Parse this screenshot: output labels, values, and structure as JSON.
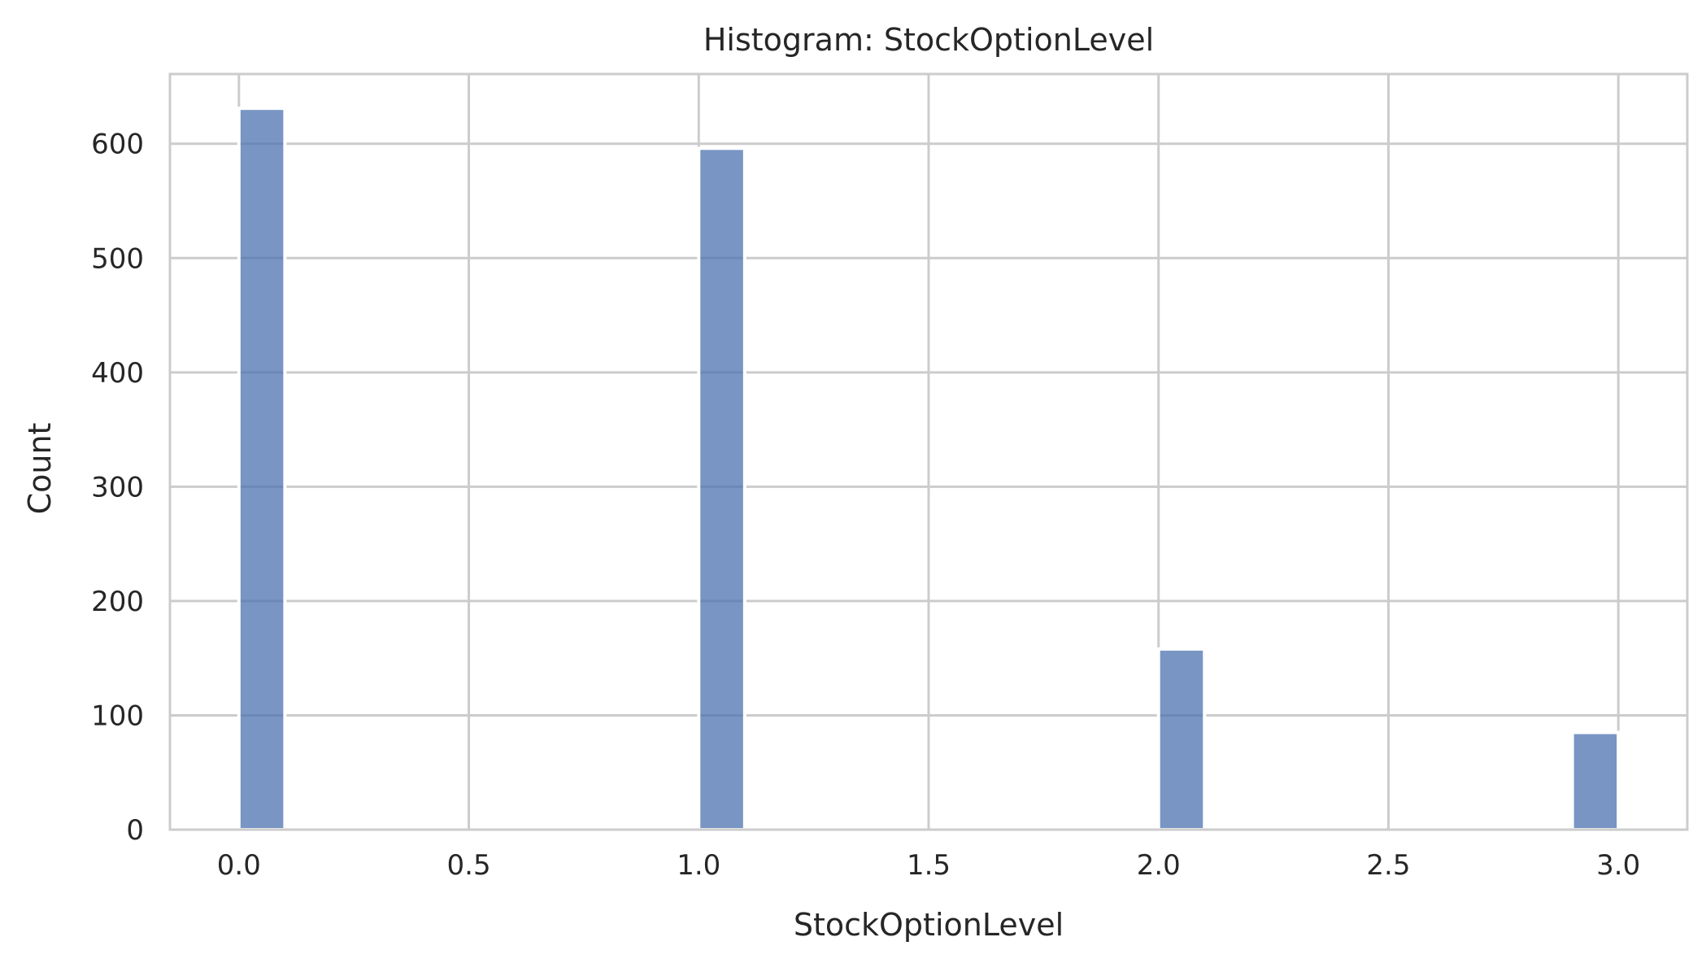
{
  "chart_data": {
    "type": "bar",
    "title": "Histogram: StockOptionLevel",
    "xlabel": "StockOptionLevel",
    "ylabel": "Count",
    "xlim": [
      -0.15,
      3.15
    ],
    "ylim": [
      0,
      661
    ],
    "xticks": [
      0.0,
      0.5,
      1.0,
      1.5,
      2.0,
      2.5,
      3.0
    ],
    "xtick_labels": [
      "0.0",
      "0.5",
      "1.0",
      "1.5",
      "2.0",
      "2.5",
      "3.0"
    ],
    "yticks": [
      0,
      100,
      200,
      300,
      400,
      500,
      600
    ],
    "ytick_labels": [
      "0",
      "100",
      "200",
      "300",
      "400",
      "500",
      "600"
    ],
    "grid": true,
    "bar_color": "#4c72b0",
    "bar_opacity": 0.75,
    "bins": [
      {
        "start": 0.0,
        "end": 0.1,
        "count": 631
      },
      {
        "start": 1.0,
        "end": 1.1,
        "count": 596
      },
      {
        "start": 2.0,
        "end": 2.1,
        "count": 158
      },
      {
        "start": 2.9,
        "end": 3.0,
        "count": 85
      }
    ]
  }
}
